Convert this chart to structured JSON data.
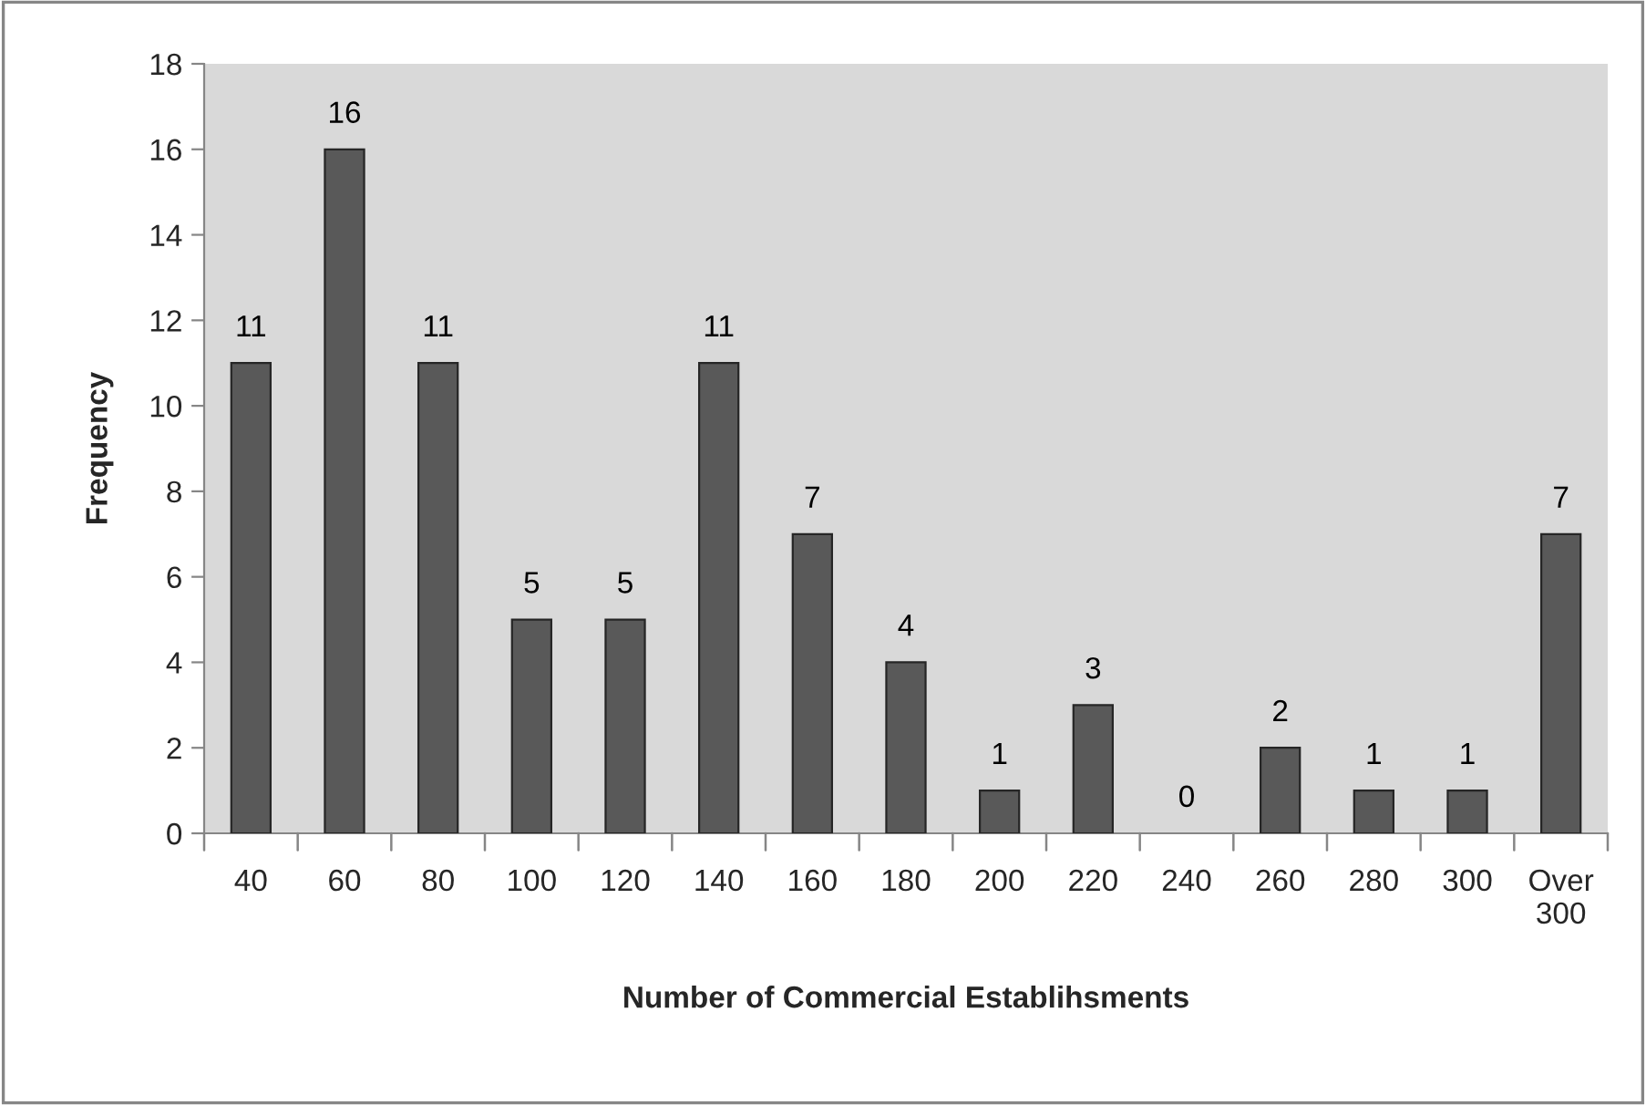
{
  "chart_data": {
    "type": "bar",
    "xlabel": "Number of Commercial Establihsments",
    "ylabel": "Frequency",
    "categories": [
      "40",
      "60",
      "80",
      "100",
      "120",
      "140",
      "160",
      "180",
      "200",
      "220",
      "240",
      "260",
      "280",
      "300",
      "Over\n300"
    ],
    "values": [
      11,
      16,
      11,
      5,
      5,
      11,
      7,
      4,
      1,
      3,
      0,
      2,
      1,
      1,
      7
    ],
    "color": "#595959",
    "ylim": [
      0,
      18
    ],
    "yticks": [
      0,
      2,
      4,
      6,
      8,
      10,
      12,
      14,
      16,
      18
    ],
    "data_labels": true,
    "grid": false,
    "legend": false
  }
}
